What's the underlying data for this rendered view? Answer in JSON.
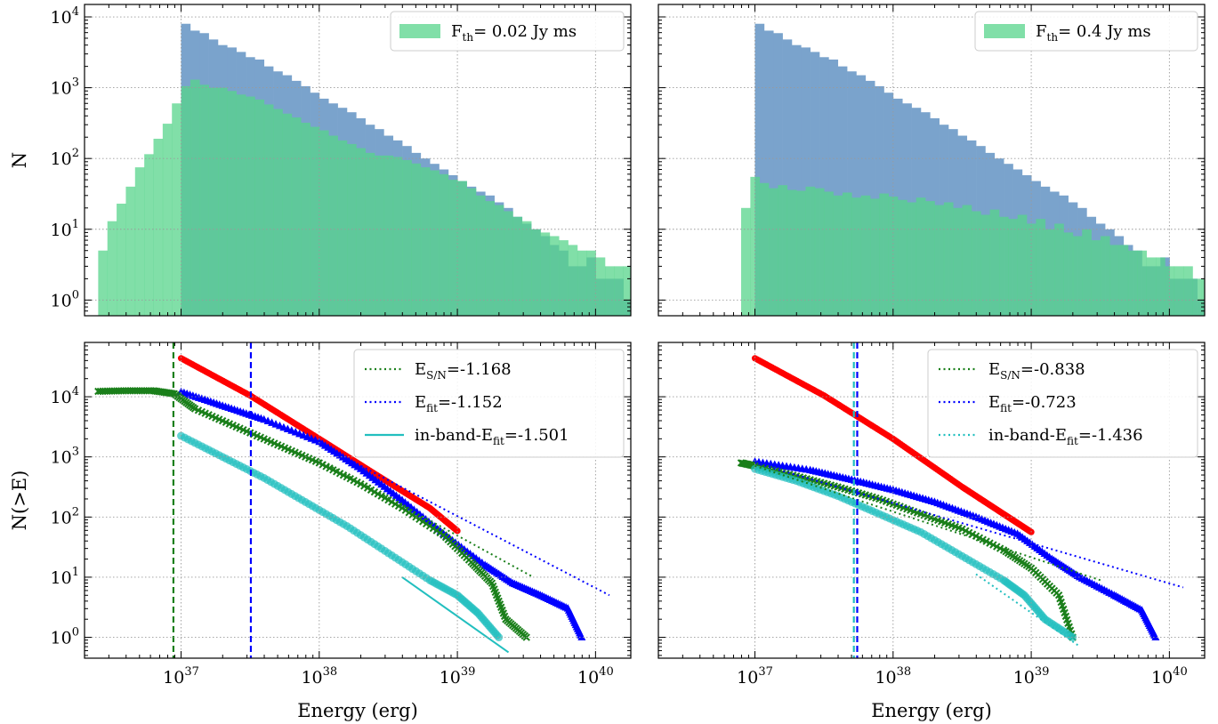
{
  "figure": {
    "colors": {
      "hist_all": "#7aa3cc",
      "hist_thresh": "#57d48b",
      "hist_overlap": "#3fae82",
      "red": "#ff0000",
      "blue": "#0000ff",
      "green": "#1a7f1a",
      "cyan": "#22bfbf"
    }
  },
  "chart_data": [
    {
      "id": "top-left",
      "type": "histogram",
      "ylabel": "N",
      "xlabel": "",
      "xscale": "log",
      "yscale": "log",
      "xlim": [
        2e+36,
        1.8e+40
      ],
      "ylim": [
        0.6,
        15000
      ],
      "grid": true,
      "legend_position": "top-right",
      "legend": [
        {
          "label_main": "F",
          "label_sub": "th",
          "label_rest": "= 0.02 Jy ms",
          "kind": "patch",
          "color": "#57d48b"
        }
      ],
      "series": [
        {
          "name": "all bursts",
          "color": "#7aa3cc",
          "log_bin_start": 37.0,
          "bin_width": 0.0667,
          "counts": [
            8000,
            6400,
            5900,
            4800,
            4000,
            3700,
            3200,
            2700,
            2500,
            2000,
            1700,
            1500,
            1250,
            1050,
            850,
            700,
            600,
            520,
            450,
            370,
            300,
            260,
            210,
            180,
            150,
            120,
            100,
            84,
            70,
            58,
            48,
            40,
            34,
            30,
            24,
            20,
            15,
            12,
            10,
            8,
            6,
            5,
            3,
            3,
            4,
            2,
            2,
            2,
            1,
            1,
            0,
            1,
            0,
            1,
            1,
            0,
            1,
            0,
            1,
            0,
            0
          ]
        },
        {
          "name": "threshold bursts",
          "color": "#57d48b",
          "log_bin_start": 36.4,
          "bin_width": 0.0667,
          "counts": [
            5,
            13,
            23,
            40,
            75,
            115,
            190,
            310,
            600,
            1050,
            1300,
            1100,
            1000,
            1000,
            900,
            800,
            750,
            680,
            580,
            500,
            430,
            380,
            320,
            280,
            250,
            210,
            180,
            160,
            140,
            120,
            110,
            110,
            105,
            95,
            85,
            75,
            68,
            60,
            50,
            48,
            38,
            30,
            25,
            22,
            18,
            15,
            13,
            10,
            9,
            8,
            7,
            6,
            5,
            5,
            4,
            3,
            3,
            3,
            2,
            2,
            2,
            2,
            1,
            1,
            1,
            0,
            1,
            0,
            1,
            0,
            1
          ]
        }
      ]
    },
    {
      "id": "top-right",
      "type": "histogram",
      "ylabel": "",
      "xlabel": "",
      "xscale": "log",
      "yscale": "log",
      "xlim": [
        2e+36,
        1.8e+40
      ],
      "ylim": [
        0.6,
        15000
      ],
      "grid": true,
      "legend_position": "top-right",
      "legend": [
        {
          "label_main": "F",
          "label_sub": "th",
          "label_rest": "= 0.4 Jy ms",
          "kind": "patch",
          "color": "#57d48b"
        }
      ],
      "series": [
        {
          "name": "all bursts",
          "color": "#7aa3cc",
          "log_bin_start": 37.0,
          "bin_width": 0.0667,
          "counts": [
            8000,
            6400,
            5900,
            4800,
            4000,
            3700,
            3200,
            2700,
            2500,
            2000,
            1700,
            1500,
            1250,
            1050,
            850,
            700,
            600,
            520,
            450,
            370,
            300,
            260,
            210,
            180,
            150,
            120,
            100,
            84,
            70,
            58,
            48,
            40,
            34,
            30,
            24,
            20,
            15,
            12,
            10,
            8,
            6,
            5,
            3,
            3,
            4,
            2,
            2,
            2,
            1,
            1,
            0,
            1,
            0,
            1,
            1,
            0,
            1,
            0,
            1,
            0,
            0
          ]
        },
        {
          "name": "threshold bursts",
          "color": "#57d48b",
          "log_bin_start": 36.9,
          "bin_width": 0.0667,
          "counts": [
            20,
            55,
            45,
            38,
            42,
            36,
            35,
            40,
            38,
            34,
            30,
            33,
            28,
            30,
            27,
            32,
            29,
            26,
            24,
            28,
            25,
            22,
            24,
            20,
            22,
            18,
            16,
            19,
            15,
            14,
            16,
            12,
            14,
            10,
            12,
            9,
            8,
            10,
            7,
            8,
            6,
            6,
            5,
            5,
            4,
            4,
            3,
            3,
            3,
            2,
            2,
            1,
            2,
            1,
            1,
            0,
            1
          ]
        }
      ]
    },
    {
      "id": "bottom-left",
      "type": "scatter",
      "ylabel": "N(>E)",
      "xlabel": "Energy (erg)",
      "xscale": "log",
      "yscale": "log",
      "xlim": [
        2e+36,
        1.8e+40
      ],
      "ylim": [
        0.45,
        80000
      ],
      "grid": true,
      "legend_position": "top-right",
      "legend": [
        {
          "label_main": "E",
          "label_sub": "S/N",
          "label_rest": "=-1.168",
          "kind": "dotted",
          "color": "#1a7f1a"
        },
        {
          "label_main": "E",
          "label_sub": "fit",
          "label_rest": "=-1.152",
          "kind": "dotted",
          "color": "#0000ff"
        },
        {
          "label_main": "in-band-E",
          "label_sub": "fit",
          "label_rest": "=-1.501",
          "kind": "solid",
          "color": "#22bfbf"
        }
      ],
      "vlines": [
        {
          "x": 8.8e+36,
          "color": "#1a7f1a",
          "style": "dashed"
        },
        {
          "x": 3.2e+37,
          "color": "#0000ff",
          "style": "dashed"
        }
      ],
      "curves": [
        {
          "name": "red cumulative",
          "marker": "dot",
          "color": "#ff0000",
          "x_log": [
            37.0,
            37.5,
            38.0,
            38.4,
            38.8,
            39.0
          ],
          "y_log": [
            4.64,
            4.02,
            3.3,
            2.72,
            2.15,
            1.77
          ]
        },
        {
          "name": "blue cumulative",
          "marker": "triangle",
          "color": "#0000ff",
          "x_log": [
            37.0,
            37.3,
            37.6,
            38.0,
            38.3,
            38.6,
            38.9,
            39.2,
            39.4,
            39.6,
            39.8,
            39.9
          ],
          "y_log": [
            4.08,
            3.85,
            3.62,
            3.25,
            2.8,
            2.28,
            1.72,
            1.2,
            0.9,
            0.7,
            0.48,
            0.0
          ]
        },
        {
          "name": "green cumulative",
          "marker": "cross",
          "color": "#1a7f1a",
          "x_log": [
            36.4,
            36.6,
            36.8,
            36.95,
            37.1,
            37.4,
            37.7,
            38.0,
            38.3,
            38.6,
            38.9,
            39.1,
            39.25,
            39.35,
            39.5
          ],
          "y_log": [
            4.09,
            4.1,
            4.1,
            4.05,
            3.8,
            3.5,
            3.2,
            2.9,
            2.55,
            2.15,
            1.7,
            1.25,
            0.9,
            0.3,
            0.0
          ]
        },
        {
          "name": "cyan cumulative",
          "marker": "circle",
          "color": "#22bfbf",
          "x_log": [
            37.0,
            37.3,
            37.6,
            37.9,
            38.2,
            38.5,
            38.8,
            39.0,
            39.15,
            39.3
          ],
          "y_log": [
            3.35,
            3.0,
            2.65,
            2.25,
            1.85,
            1.4,
            0.95,
            0.7,
            0.4,
            0.0
          ]
        }
      ],
      "fits": [
        {
          "name": "E_S/N fit",
          "style": "dotted",
          "color": "#1a7f1a",
          "x_log": [
            38.0,
            39.55
          ],
          "y_log": [
            2.95,
            1.0
          ]
        },
        {
          "name": "E_fit fit",
          "style": "dotted",
          "color": "#0000ff",
          "x_log": [
            37.8,
            40.1
          ],
          "y_log": [
            3.45,
            0.7
          ]
        },
        {
          "name": "in-band fit",
          "style": "solid",
          "color": "#22bfbf",
          "x_log": [
            38.6,
            39.37
          ],
          "y_log": [
            1.0,
            -0.25
          ]
        }
      ]
    },
    {
      "id": "bottom-right",
      "type": "scatter",
      "ylabel": "",
      "xlabel": "Energy (erg)",
      "xscale": "log",
      "yscale": "log",
      "xlim": [
        2e+36,
        1.8e+40
      ],
      "ylim": [
        0.45,
        80000
      ],
      "grid": true,
      "legend_position": "top-right",
      "legend": [
        {
          "label_main": "E",
          "label_sub": "S/N",
          "label_rest": "=-0.838",
          "kind": "dotted",
          "color": "#1a7f1a"
        },
        {
          "label_main": "E",
          "label_sub": "fit",
          "label_rest": "=-0.723",
          "kind": "dotted",
          "color": "#0000ff"
        },
        {
          "label_main": "in-band-E",
          "label_sub": "fit",
          "label_rest": "=-1.436",
          "kind": "dotted",
          "color": "#22bfbf"
        }
      ],
      "vlines": [
        {
          "x": 5.2e+37,
          "color": "#22bfbf",
          "style": "dashed"
        },
        {
          "x": 5.5e+37,
          "color": "#0000ff",
          "style": "dashed"
        }
      ],
      "curves": [
        {
          "name": "red cumulative",
          "marker": "dot",
          "color": "#ff0000",
          "x_log": [
            37.0,
            37.5,
            38.0,
            38.5,
            38.8,
            39.0
          ],
          "y_log": [
            4.64,
            4.02,
            3.3,
            2.5,
            2.05,
            1.75
          ]
        },
        {
          "name": "blue cumulative",
          "marker": "triangle",
          "color": "#0000ff",
          "x_log": [
            37.0,
            37.4,
            37.7,
            38.0,
            38.3,
            38.6,
            38.9,
            39.15,
            39.35,
            39.6,
            39.8,
            39.9
          ],
          "y_log": [
            2.92,
            2.78,
            2.62,
            2.45,
            2.25,
            2.0,
            1.72,
            1.3,
            1.0,
            0.7,
            0.45,
            0.0
          ]
        },
        {
          "name": "green cumulative",
          "marker": "cross",
          "color": "#1a7f1a",
          "x_log": [
            36.9,
            37.0,
            37.3,
            37.6,
            37.9,
            38.2,
            38.5,
            38.8,
            39.0,
            39.2,
            39.3
          ],
          "y_log": [
            2.9,
            2.85,
            2.68,
            2.5,
            2.3,
            2.05,
            1.8,
            1.45,
            1.15,
            0.7,
            0.0
          ]
        },
        {
          "name": "cyan cumulative",
          "marker": "circle",
          "color": "#22bfbf",
          "x_log": [
            37.0,
            37.3,
            37.6,
            37.9,
            38.2,
            38.5,
            38.8,
            38.95,
            39.1,
            39.3
          ],
          "y_log": [
            2.8,
            2.6,
            2.35,
            2.05,
            1.75,
            1.35,
            0.95,
            0.7,
            0.3,
            0.0
          ]
        }
      ],
      "fits": [
        {
          "name": "E_S/N fit",
          "style": "dotted",
          "color": "#1a7f1a",
          "x_log": [
            37.0,
            39.5
          ],
          "y_log": [
            2.85,
            0.95
          ]
        },
        {
          "name": "E_fit fit",
          "style": "dotted",
          "color": "#0000ff",
          "x_log": [
            37.0,
            40.1
          ],
          "y_log": [
            2.9,
            0.83
          ]
        },
        {
          "name": "in-band fit",
          "style": "dotted",
          "color": "#22bfbf",
          "x_log": [
            38.6,
            39.35
          ],
          "y_log": [
            1.05,
            -0.15
          ]
        }
      ]
    }
  ]
}
